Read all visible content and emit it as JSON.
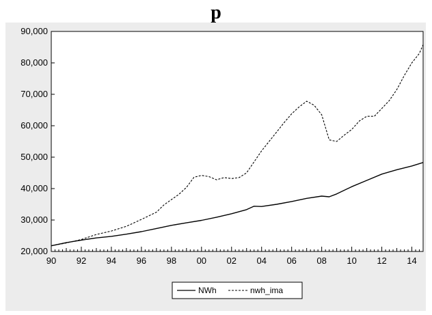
{
  "chart_data": {
    "type": "line",
    "title": "p",
    "xlabel": "",
    "ylabel": "",
    "x_ticks": [
      "90",
      "92",
      "94",
      "96",
      "98",
      "00",
      "02",
      "04",
      "06",
      "08",
      "10",
      "12",
      "14"
    ],
    "y_ticks": [
      "20,000",
      "30,000",
      "40,000",
      "50,000",
      "60,000",
      "70,000",
      "80,000",
      "90,000"
    ],
    "xlim": [
      1990.0,
      2014.75
    ],
    "ylim": [
      20000,
      90000
    ],
    "grid": false,
    "legend_position": "bottom-center",
    "series": [
      {
        "name": "NWh",
        "style": "solid",
        "color": "#000000",
        "x": [
          1990.0,
          1991.0,
          1992.0,
          1993.0,
          1994.0,
          1995.0,
          1996.0,
          1997.0,
          1998.0,
          1999.0,
          2000.0,
          2001.0,
          2002.0,
          2003.0,
          2003.5,
          2004.0,
          2005.0,
          2006.0,
          2007.0,
          2008.0,
          2008.5,
          2009.0,
          2010.0,
          2011.0,
          2012.0,
          2013.0,
          2014.0,
          2014.75
        ],
        "y": [
          21800,
          22800,
          23600,
          24300,
          24800,
          25500,
          26300,
          27300,
          28300,
          29100,
          29900,
          30900,
          32000,
          33300,
          34400,
          34300,
          35000,
          35900,
          36900,
          37600,
          37400,
          38300,
          40600,
          42600,
          44600,
          46000,
          47200,
          48300
        ]
      },
      {
        "name": "nwh_ima",
        "style": "dashed",
        "color": "#000000",
        "x": [
          1990.0,
          1991.0,
          1992.0,
          1993.0,
          1994.0,
          1995.0,
          1996.0,
          1997.0,
          1997.5,
          1998.0,
          1998.5,
          1999.0,
          1999.5,
          2000.0,
          2000.5,
          2001.0,
          2001.5,
          2002.0,
          2002.5,
          2003.0,
          2003.5,
          2004.0,
          2004.5,
          2005.0,
          2005.5,
          2006.0,
          2006.5,
          2007.0,
          2007.5,
          2008.0,
          2008.5,
          2009.0,
          2009.5,
          2010.0,
          2010.5,
          2011.0,
          2011.5,
          2012.0,
          2012.5,
          2013.0,
          2013.5,
          2014.0,
          2014.5,
          2014.75
        ],
        "y": [
          21800,
          22700,
          23800,
          25400,
          26500,
          28000,
          30200,
          32500,
          34800,
          36500,
          38200,
          40400,
          43600,
          44200,
          43800,
          42800,
          43500,
          43200,
          43500,
          45000,
          48500,
          52000,
          55000,
          58000,
          61000,
          63800,
          66000,
          67800,
          66500,
          63500,
          55500,
          55000,
          57000,
          58800,
          61500,
          63000,
          63000,
          65500,
          68000,
          71500,
          76000,
          80000,
          83000,
          85800
        ]
      }
    ]
  }
}
